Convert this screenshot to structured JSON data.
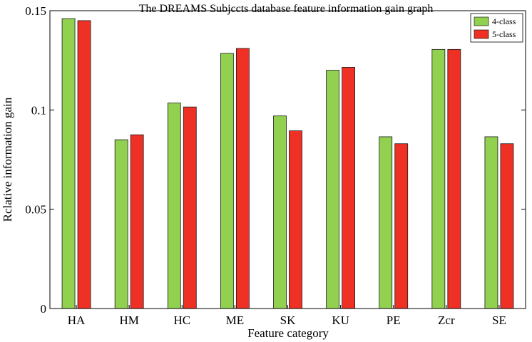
{
  "chart_data": {
    "type": "bar",
    "title": "The DREAMS Subjccts database feature information gain graph",
    "xlabel": "Feature category",
    "ylabel": "Rclative information gain",
    "categories": [
      "HA",
      "HM",
      "HC",
      "ME",
      "SK",
      "KU",
      "PE",
      "Zcr",
      "SE"
    ],
    "series": [
      {
        "name": "4-class",
        "color": "#92d050",
        "values": [
          0.146,
          0.085,
          0.1035,
          0.1285,
          0.097,
          0.12,
          0.0865,
          0.1305,
          0.0865
        ]
      },
      {
        "name": "5-class",
        "color": "#ee3124",
        "values": [
          0.145,
          0.0875,
          0.1015,
          0.131,
          0.0895,
          0.1215,
          0.083,
          0.1305,
          0.083
        ]
      }
    ],
    "ylim": [
      0,
      0.15
    ],
    "yticks": [
      0,
      0.05,
      0.1,
      0.15
    ],
    "ytick_labels": [
      "0",
      "0.05",
      "0.1",
      "0.15"
    ],
    "grid": false,
    "legend_position": "top-right"
  }
}
